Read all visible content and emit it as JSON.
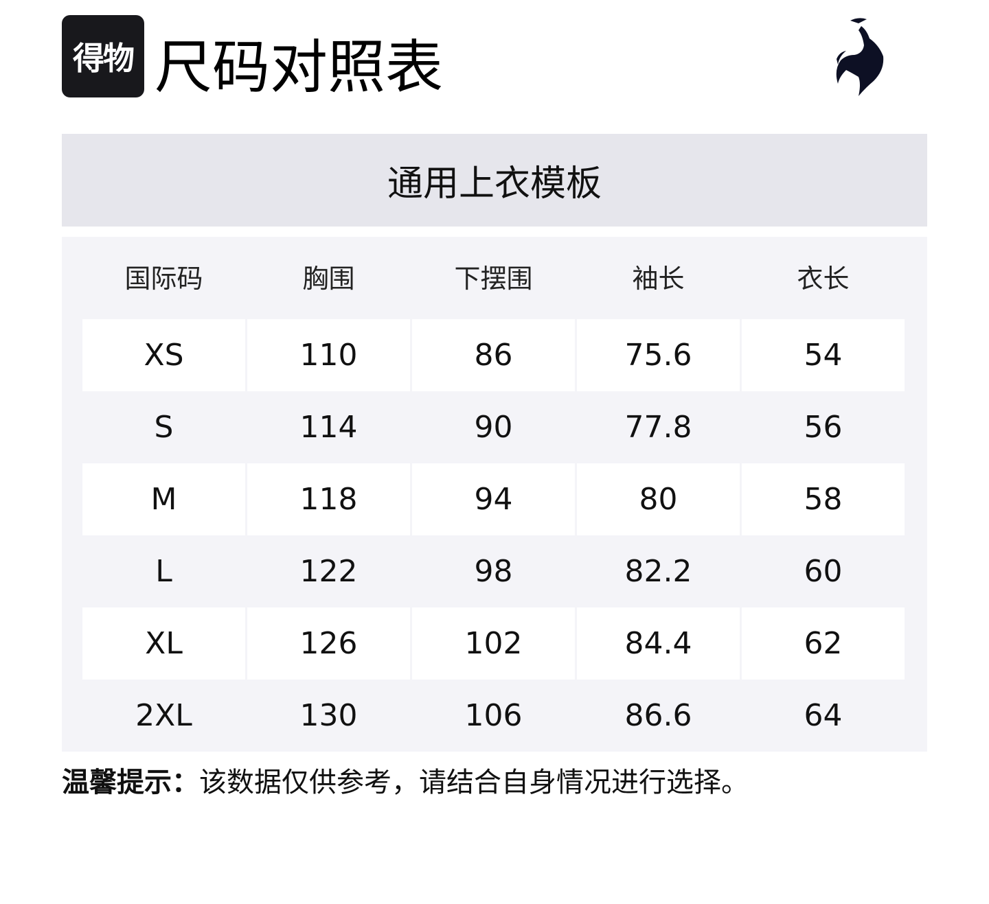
{
  "header": {
    "app_logo_text": "得物",
    "title": "尺码对照表",
    "brand_logo": "le-coq-sportif-rooster"
  },
  "template_name": "通用上衣模板",
  "table": {
    "columns": [
      "国际码",
      "胸围",
      "下摆围",
      "袖长",
      "衣长"
    ],
    "rows": [
      [
        "XS",
        "110",
        "86",
        "75.6",
        "54"
      ],
      [
        "S",
        "114",
        "90",
        "77.8",
        "56"
      ],
      [
        "M",
        "118",
        "94",
        "80",
        "58"
      ],
      [
        "L",
        "122",
        "98",
        "82.2",
        "60"
      ],
      [
        "XL",
        "126",
        "102",
        "84.4",
        "62"
      ],
      [
        "2XL",
        "130",
        "106",
        "86.6",
        "64"
      ]
    ]
  },
  "tip": {
    "label": "温馨提示：",
    "text": "该数据仅供参考，请结合自身情况进行选择。"
  }
}
